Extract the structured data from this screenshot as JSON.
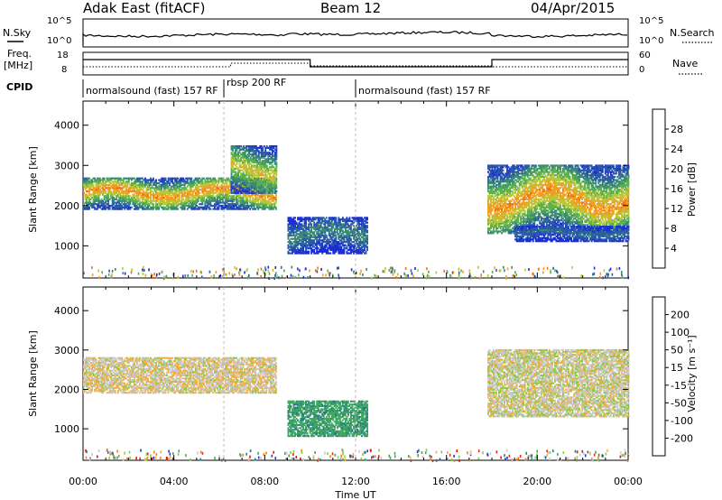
{
  "header": {
    "station": "Adak East (fitACF)",
    "beam": "Beam 12",
    "date": "04/Apr/2015"
  },
  "top_panels": {
    "nsky_label": "N.Sky",
    "nsky_ticks": [
      "10^5",
      "10^0"
    ],
    "nsearch_label": "N.Search",
    "nsearch_ticks": [
      "10^5",
      "10^0"
    ],
    "freq_label": "Freq.",
    "freq_unit": "[MHz]",
    "freq_ticks": [
      "18",
      "8"
    ],
    "nave_label": "Nave",
    "nave_ticks": [
      "60",
      "0"
    ],
    "cpid_label": "CPID",
    "cpid_segments": [
      {
        "label": "normalsound (fast) 157 RF",
        "start_hour": 0.0,
        "end_hour": 6.2
      },
      {
        "label": "rbsp 200 RF",
        "start_hour": 6.2,
        "end_hour": 12.0
      },
      {
        "label": "normalsound (fast) 157 RF",
        "start_hour": 12.0,
        "end_hour": 24.0
      }
    ]
  },
  "axes": {
    "ylabel": "Slant Range [km]",
    "xlabel": "Time UT",
    "y_ticks": [
      "1000",
      "2000",
      "3000",
      "4000"
    ],
    "x_ticks": [
      "00:00",
      "04:00",
      "08:00",
      "12:00",
      "16:00",
      "20:00",
      "00:00"
    ]
  },
  "colorbars": {
    "power": {
      "label": "Power [dB]",
      "ticks": [
        "4",
        "8",
        "12",
        "16",
        "20",
        "24",
        "28"
      ],
      "colors": [
        "#1a2fd8",
        "#2a5aa8",
        "#3a8a74",
        "#5bb050",
        "#b8c838",
        "#f0a020",
        "#f07010",
        "#e81010"
      ]
    },
    "velocity": {
      "label": "Velocity [m s⁻¹]",
      "ticks": [
        "200",
        "100",
        "50",
        "15",
        "-15",
        "-50",
        "-100",
        "-200"
      ],
      "colors": [
        "#2040c0",
        "#2a7a8a",
        "#40a860",
        "#88cc44",
        "#c8c8c8",
        "#f0b040",
        "#f08020",
        "#e83010",
        "#e81010"
      ]
    }
  },
  "chart_data": {
    "type": "heatmap",
    "x": {
      "unit": "hour UT",
      "range": [
        0,
        24
      ]
    },
    "y": {
      "unit": "km",
      "range": [
        200,
        4600
      ]
    },
    "power_panel": {
      "regions": [
        {
          "t0": 0.0,
          "t1": 8.5,
          "r_low": 1900,
          "r_high": 2700,
          "peak_db": 24
        },
        {
          "t0": 6.5,
          "t1": 8.5,
          "r_low": 2300,
          "r_high": 3500,
          "peak_db": 20
        },
        {
          "t0": 9.0,
          "t1": 12.5,
          "r_low": 800,
          "r_high": 1700,
          "peak_db": 10
        },
        {
          "t0": 17.8,
          "t1": 24.0,
          "r_low": 1300,
          "r_high": 3000,
          "peak_db": 24
        },
        {
          "t0": 19.0,
          "t1": 24.0,
          "r_low": 1100,
          "r_high": 1500,
          "peak_db": 8
        }
      ]
    },
    "velocity_panel": {
      "regions": [
        {
          "t0": 0.0,
          "t1": 8.5,
          "r_low": 1900,
          "r_high": 2800,
          "velocity": -10
        },
        {
          "t0": 9.0,
          "t1": 12.5,
          "r_low": 800,
          "r_high": 1700,
          "velocity": 40
        },
        {
          "t0": 17.8,
          "t1": 24.0,
          "r_low": 1300,
          "r_high": 3000,
          "velocity": -5
        }
      ]
    }
  }
}
